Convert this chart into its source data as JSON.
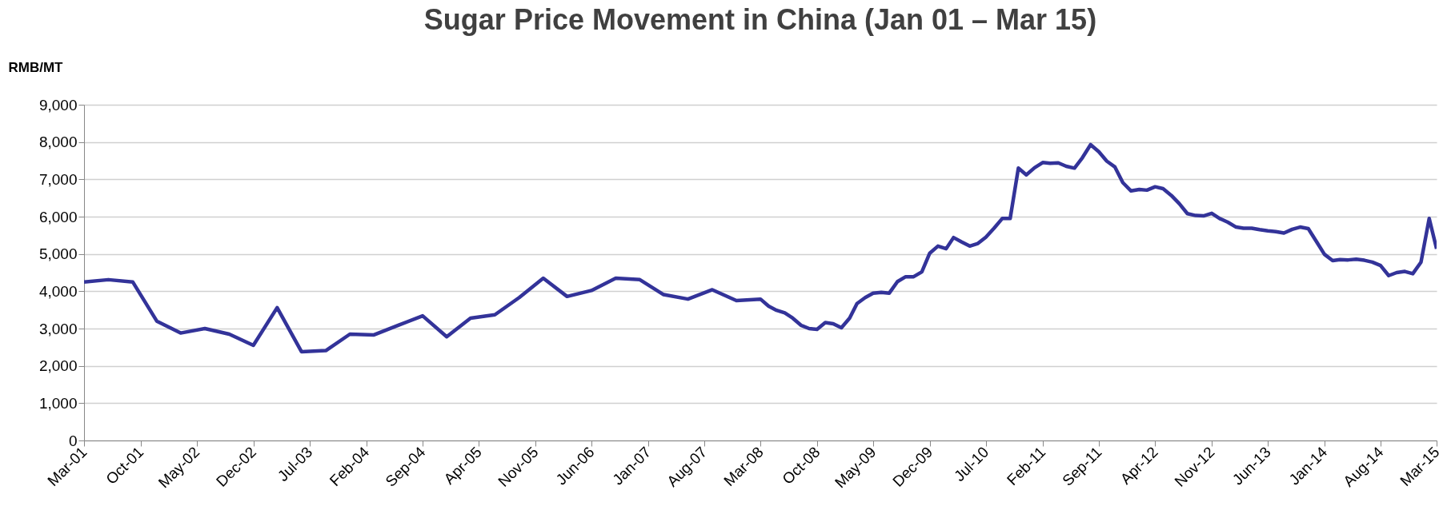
{
  "chart_data": {
    "type": "line",
    "title": "Sugar Price Movement in China (Jan 01 – Mar 15)",
    "ylabel": "RMB/MT",
    "x": [
      "2001-03",
      "2001-06",
      "2001-09",
      "2001-12",
      "2002-03",
      "2002-06",
      "2002-09",
      "2002-12",
      "2003-03",
      "2003-06",
      "2003-09",
      "2003-12",
      "2004-03",
      "2004-06",
      "2004-09",
      "2004-12",
      "2005-03",
      "2005-06",
      "2005-09",
      "2005-12",
      "2006-03",
      "2006-06",
      "2006-09",
      "2006-12",
      "2007-03",
      "2007-06",
      "2007-09",
      "2007-12",
      "2008-03",
      "2008-04",
      "2008-05",
      "2008-06",
      "2008-07",
      "2008-08",
      "2008-09",
      "2008-10",
      "2008-11",
      "2008-12",
      "2009-01",
      "2009-02",
      "2009-03",
      "2009-04",
      "2009-05",
      "2009-06",
      "2009-07",
      "2009-08",
      "2009-09",
      "2009-10",
      "2009-11",
      "2009-12",
      "2010-01",
      "2010-02",
      "2010-03",
      "2010-04",
      "2010-05",
      "2010-06",
      "2010-07",
      "2010-08",
      "2010-09",
      "2010-10",
      "2010-11",
      "2010-12",
      "2011-01",
      "2011-02",
      "2011-03",
      "2011-04",
      "2011-05",
      "2011-06",
      "2011-07",
      "2011-08",
      "2011-09",
      "2011-10",
      "2011-11",
      "2011-12",
      "2012-01",
      "2012-02",
      "2012-03",
      "2012-04",
      "2012-05",
      "2012-06",
      "2012-07",
      "2012-08",
      "2012-09",
      "2012-10",
      "2012-11",
      "2012-12",
      "2013-01",
      "2013-02",
      "2013-03",
      "2013-04",
      "2013-05",
      "2013-06",
      "2013-07",
      "2013-08",
      "2013-09",
      "2013-10",
      "2013-11",
      "2013-12",
      "2014-01",
      "2014-02",
      "2014-03",
      "2014-04",
      "2014-05",
      "2014-06",
      "2014-07",
      "2014-08",
      "2014-09",
      "2014-10",
      "2014-11",
      "2014-12",
      "2015-01",
      "2015-02",
      "2015-03"
    ],
    "series": [
      {
        "color": "#333399",
        "values": [
          4250,
          4310,
          4250,
          3200,
          2880,
          3000,
          2850,
          2550,
          3560,
          2380,
          2410,
          2850,
          2830,
          3090,
          3340,
          2780,
          3280,
          3370,
          3830,
          4350,
          3860,
          4020,
          4350,
          4310,
          3910,
          3790,
          4040,
          3750,
          3790,
          3600,
          3490,
          3420,
          3280,
          3090,
          3000,
          2980,
          3160,
          3130,
          3020,
          3280,
          3670,
          3830,
          3950,
          3970,
          3950,
          4260,
          4390,
          4390,
          4520,
          5020,
          5210,
          5140,
          5440,
          5320,
          5210,
          5280,
          5450,
          5690,
          5950,
          5950,
          7300,
          7120,
          7310,
          7450,
          7430,
          7440,
          7350,
          7300,
          7580,
          7930,
          7740,
          7490,
          7330,
          6910,
          6690,
          6730,
          6710,
          6800,
          6750,
          6570,
          6350,
          6080,
          6030,
          6020,
          6090,
          5950,
          5850,
          5720,
          5690,
          5690,
          5650,
          5620,
          5600,
          5560,
          5660,
          5720,
          5680,
          5340,
          4990,
          4820,
          4850,
          4840,
          4860,
          4830,
          4780,
          4690,
          4420,
          4500,
          4530,
          4470,
          4780,
          5950,
          5140
        ]
      }
    ],
    "xlim": [
      "2001-03",
      "2015-03"
    ],
    "xticks": [
      {
        "value": "2001-03",
        "label": "Mar-01"
      },
      {
        "value": "2001-10",
        "label": "Oct-01"
      },
      {
        "value": "2002-05",
        "label": "May-02"
      },
      {
        "value": "2002-12",
        "label": "Dec-02"
      },
      {
        "value": "2003-07",
        "label": "Jul-03"
      },
      {
        "value": "2004-02",
        "label": "Feb-04"
      },
      {
        "value": "2004-09",
        "label": "Sep-04"
      },
      {
        "value": "2005-04",
        "label": "Apr-05"
      },
      {
        "value": "2005-11",
        "label": "Nov-05"
      },
      {
        "value": "2006-06",
        "label": "Jun-06"
      },
      {
        "value": "2007-01",
        "label": "Jan-07"
      },
      {
        "value": "2007-08",
        "label": "Aug-07"
      },
      {
        "value": "2008-03",
        "label": "Mar-08"
      },
      {
        "value": "2008-10",
        "label": "Oct-08"
      },
      {
        "value": "2009-05",
        "label": "May-09"
      },
      {
        "value": "2009-12",
        "label": "Dec-09"
      },
      {
        "value": "2010-07",
        "label": "Jul-10"
      },
      {
        "value": "2011-02",
        "label": "Feb-11"
      },
      {
        "value": "2011-09",
        "label": "Sep-11"
      },
      {
        "value": "2012-04",
        "label": "Apr-12"
      },
      {
        "value": "2012-11",
        "label": "Nov-12"
      },
      {
        "value": "2013-06",
        "label": "Jun-13"
      },
      {
        "value": "2014-01",
        "label": "Jan-14"
      },
      {
        "value": "2014-08",
        "label": "Aug-14"
      },
      {
        "value": "2015-03",
        "label": "Mar-15"
      }
    ],
    "ylim": [
      0,
      9000
    ],
    "yticks": [
      {
        "value": 0,
        "label": "0"
      },
      {
        "value": 1000,
        "label": "1,000"
      },
      {
        "value": 2000,
        "label": "2,000"
      },
      {
        "value": 3000,
        "label": "3,000"
      },
      {
        "value": 4000,
        "label": "4,000"
      },
      {
        "value": 5000,
        "label": "5,000"
      },
      {
        "value": 6000,
        "label": "6,000"
      },
      {
        "value": 7000,
        "label": "7,000"
      },
      {
        "value": 8000,
        "label": "8,000"
      },
      {
        "value": 9000,
        "label": "9,000"
      }
    ],
    "grid": "y",
    "marker": "none",
    "line_style": "solid"
  }
}
